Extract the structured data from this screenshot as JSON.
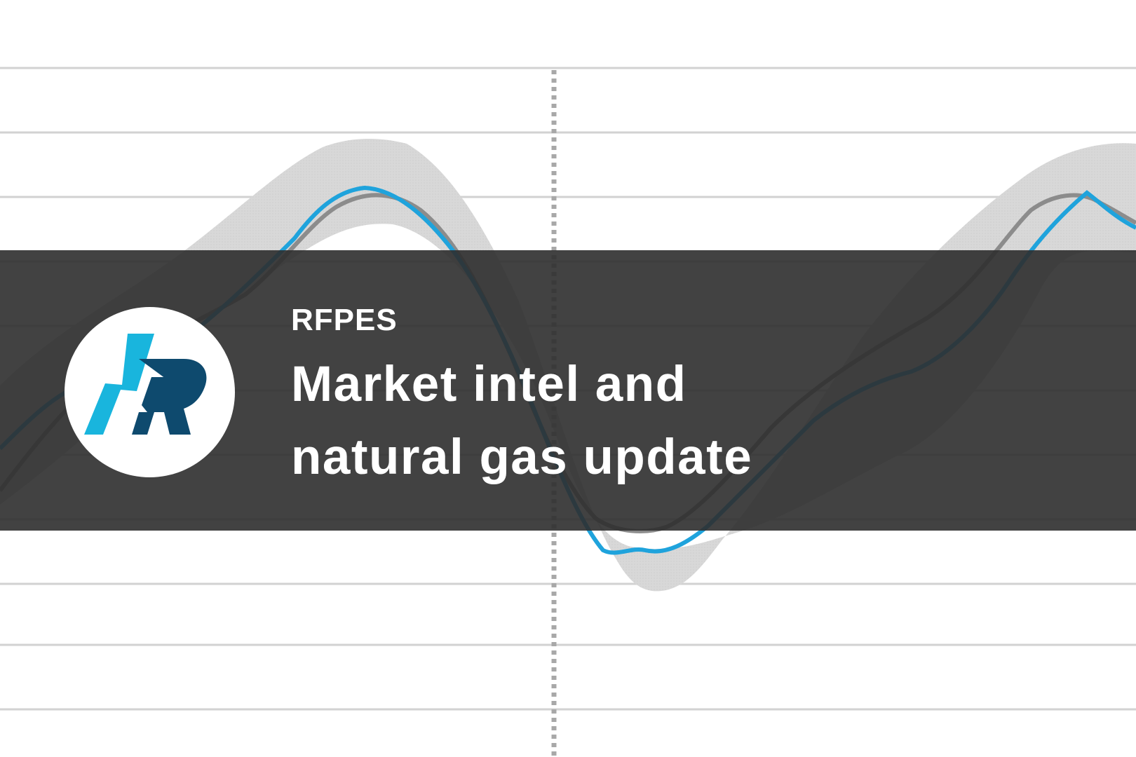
{
  "brand": {
    "name": "RFPES",
    "logo_icon": "bolt-r-logo-icon",
    "colors": {
      "bolt": "#19b5dd",
      "letter": "#0e4a6e",
      "circle": "#ffffff"
    }
  },
  "headline": {
    "line1": "Market intel and",
    "line2": "natural gas update"
  },
  "background": {
    "type": "line",
    "series_colors": {
      "blue": "#1fa3dc",
      "gray": "#888888",
      "band": "#d3d3d3"
    },
    "grid": true
  },
  "banner": {
    "color": "#2e2e2e"
  }
}
